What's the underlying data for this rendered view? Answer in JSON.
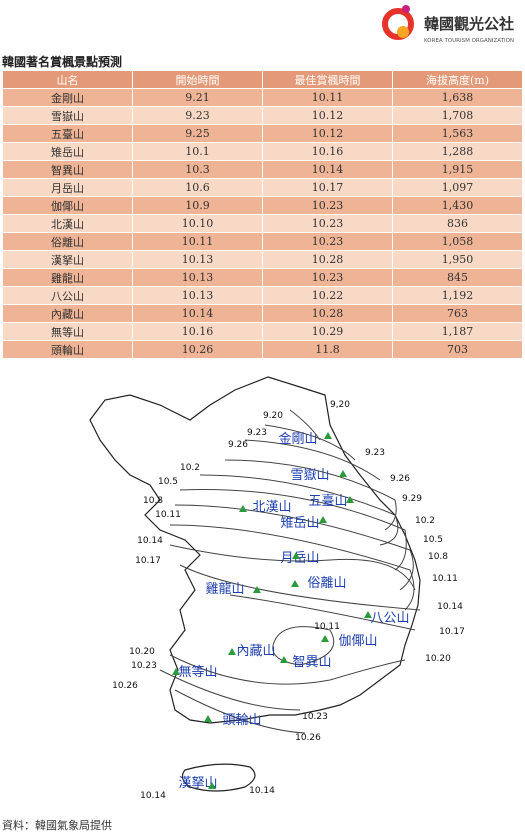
{
  "header": {
    "logo_text": "韓國觀光公社",
    "logo_subtext": "KOREA TOURISM ORGANIZATION"
  },
  "title": "韓國著名賞楓景點預測",
  "table": {
    "columns": [
      "山名",
      "開始時間",
      "最佳賞楓時間",
      "海拔高度(m)"
    ],
    "rows": [
      [
        "金剛山",
        "9.21",
        "10.11",
        "1,638"
      ],
      [
        "雪嶽山",
        "9.23",
        "10.12",
        "1,708"
      ],
      [
        "五臺山",
        "9.25",
        "10.12",
        "1,563"
      ],
      [
        "雉岳山",
        "10.1",
        "10.16",
        "1,288"
      ],
      [
        "智異山",
        "10.3",
        "10.14",
        "1,915"
      ],
      [
        "月岳山",
        "10.6",
        "10.17",
        "1,097"
      ],
      [
        "伽倻山",
        "10.9",
        "10.23",
        "1,430"
      ],
      [
        "北漢山",
        "10.10",
        "10.23",
        "836"
      ],
      [
        "俗離山",
        "10.11",
        "10.23",
        "1,058"
      ],
      [
        "漢拏山",
        "10.13",
        "10.28",
        "1,950"
      ],
      [
        "雞龍山",
        "10.13",
        "10.23",
        "845"
      ],
      [
        "八公山",
        "10.13",
        "10.22",
        "1,192"
      ],
      [
        "內藏山",
        "10.14",
        "10.28",
        "763"
      ],
      [
        "無等山",
        "10.16",
        "10.29",
        "1,187"
      ],
      [
        "頭輪山",
        "10.26",
        "11.8",
        "703"
      ]
    ]
  },
  "map": {
    "mountains": [
      "金剛山",
      "雪嶽山",
      "五臺山",
      "北漢山",
      "雉岳山",
      "月岳山",
      "俗離山",
      "雞龍山",
      "八公山",
      "伽倻山",
      "內藏山",
      "智異山",
      "無等山",
      "頭輪山",
      "漢拏山"
    ],
    "contours": [
      "9,20",
      "9.20",
      "9.23",
      "9.26",
      "9.23",
      "10.2",
      "9.26",
      "10.5",
      "10.8",
      "9.29",
      "10.11",
      "10.2",
      "10.14",
      "10.5",
      "10.8",
      "10.17",
      "10.11",
      "10.14",
      "10.17",
      "10.11",
      "10.20",
      "10.20",
      "10.23",
      "10.26",
      "10.23",
      "10.26",
      "10.14",
      "10.14"
    ]
  },
  "source": "資料：韓國氣象局提供"
}
